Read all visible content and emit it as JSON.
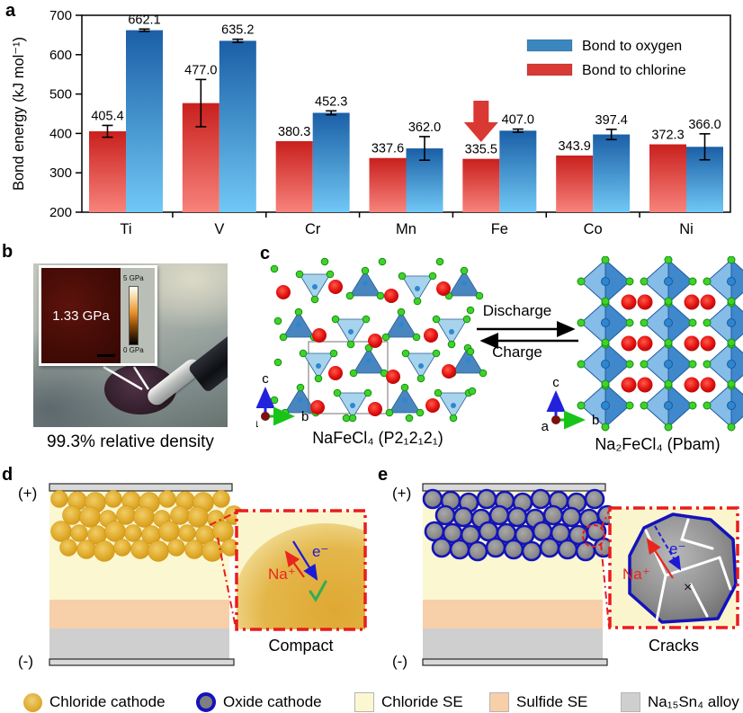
{
  "figure": {
    "panel_labels": {
      "a": "a",
      "b": "b",
      "c": "c",
      "d": "d",
      "e": "e"
    }
  },
  "chart_data": {
    "type": "bar",
    "title": "",
    "ylabel": "Bond energy (kJ mol⁻¹)",
    "xlabel": "",
    "ylim": [
      200,
      700
    ],
    "yticks": [
      200,
      300,
      400,
      500,
      600,
      700
    ],
    "grid": false,
    "legend_position": "top-right",
    "categories": [
      "Ti",
      "V",
      "Cr",
      "Mn",
      "Fe",
      "Co",
      "Ni"
    ],
    "series": [
      {
        "name": "Bond to chlorine",
        "legend_color": "#d93a36",
        "color_top": "#c9201d",
        "color_bottom": "#f8837c",
        "values": [
          405.4,
          477.0,
          380.3,
          337.6,
          335.5,
          343.9,
          372.3
        ],
        "errors": [
          15,
          60,
          0,
          0,
          0,
          0,
          0
        ]
      },
      {
        "name": "Bond to oxygen",
        "legend_color": "#3a87bf",
        "color_top": "#1b5fa6",
        "color_bottom": "#70c8f5",
        "values": [
          662.1,
          635.2,
          452.3,
          362.0,
          407.0,
          397.4,
          366.0
        ],
        "errors": [
          3,
          4,
          5,
          30,
          4,
          13,
          33
        ]
      }
    ],
    "annotation": {
      "type": "down-arrow",
      "category": "Fe",
      "series": "Bond to chlorine",
      "color": "#da3832"
    }
  },
  "panel_b": {
    "inset_value": "1.33 GPa",
    "colorbar_max": "5 GPa",
    "colorbar_min": "0 GPa",
    "caption": "99.3% relative density"
  },
  "panel_c": {
    "left_caption": "NaFeCl₄ (P2₁2₁2₁)",
    "right_caption": "Na₂FeCl₄ (Pbam)",
    "forward_label": "Discharge",
    "backward_label": "Charge",
    "axes": {
      "up": "c",
      "right": "b",
      "origin": "a"
    }
  },
  "panel_d": {
    "positive": "(+)",
    "negative": "(-)",
    "ion_label": "Na⁺",
    "electron_label": "e⁻",
    "caption": "Compact"
  },
  "panel_e": {
    "positive": "(+)",
    "negative": "(-)",
    "ion_label": "Na⁺",
    "electron_label": "e⁻",
    "caption": "Cracks"
  },
  "legend": {
    "items": [
      {
        "label": "Chloride cathode",
        "icon": "gold-sphere-icon"
      },
      {
        "label": "Oxide cathode",
        "icon": "gray-sphere-blue-ring-icon"
      },
      {
        "label": "Chloride SE",
        "icon": "square-swatch",
        "color": "#fbf7d0"
      },
      {
        "label": "Sulfide SE",
        "icon": "square-swatch",
        "color": "#f7cfa9"
      },
      {
        "label": "Na₁₅Sn₄ alloy",
        "icon": "square-swatch",
        "color": "#cfcfcf"
      }
    ]
  }
}
